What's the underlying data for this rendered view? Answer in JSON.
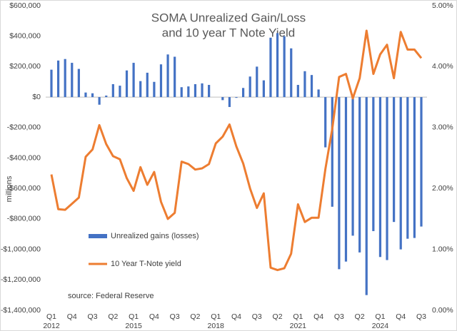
{
  "chart_data": {
    "type": "combo",
    "title": [
      "SOMA Unrealized Gain/Loss",
      "and 10 year T Note Yield"
    ],
    "ylabel": "millions",
    "annotation": "source: Federal Reserve",
    "categories": [
      "Q1",
      null,
      null,
      "Q4",
      null,
      null,
      "Q3",
      null,
      null,
      "Q2",
      null,
      null,
      "Q1",
      null,
      null,
      "Q4",
      null,
      null,
      "Q3",
      null,
      null,
      "Q2",
      null,
      null,
      "Q1",
      null,
      null,
      "Q4",
      null,
      null,
      "Q3",
      null,
      null,
      "Q2",
      null,
      null,
      "Q1",
      null,
      null,
      "Q4",
      null,
      null,
      "Q3",
      null,
      null,
      "Q2",
      null,
      null,
      "Q1",
      null,
      null,
      "Q4",
      null,
      null,
      "Q3"
    ],
    "category_groups": [
      "2012",
      null,
      null,
      null,
      null,
      null,
      null,
      null,
      null,
      null,
      null,
      null,
      "2015",
      null,
      null,
      null,
      null,
      null,
      null,
      null,
      null,
      null,
      null,
      null,
      "2018",
      null,
      null,
      null,
      null,
      null,
      null,
      null,
      null,
      null,
      null,
      null,
      "2021",
      null,
      null,
      null,
      null,
      null,
      null,
      null,
      null,
      null,
      null,
      null,
      "2024",
      null,
      null,
      null,
      null,
      null,
      null
    ],
    "series": [
      {
        "name": "Unrealized gains (losses)",
        "type": "bar",
        "color": "#4472c4",
        "values": [
          180000,
          240000,
          250000,
          225000,
          185000,
          30000,
          25000,
          -50000,
          10000,
          85000,
          75000,
          175000,
          225000,
          105000,
          160000,
          100000,
          215000,
          280000,
          265000,
          65000,
          70000,
          85000,
          90000,
          80000,
          0,
          -20000,
          -65000,
          -5000,
          60000,
          135000,
          200000,
          110000,
          390000,
          420000,
          400000,
          320000,
          80000,
          170000,
          145000,
          50000,
          -330000,
          -720000,
          -1130000,
          -1080000,
          -910000,
          -1020000,
          -1300000,
          -880000,
          -1050000,
          -1070000,
          -820000,
          -1000000,
          -930000,
          -925000,
          -850000
        ]
      },
      {
        "name": "10 Year T-Note yield",
        "type": "line",
        "axis": "y2",
        "color": "#ed7d31",
        "values": [
          2.23,
          1.66,
          1.65,
          1.75,
          1.85,
          2.52,
          2.64,
          3.04,
          2.73,
          2.53,
          2.48,
          2.17,
          1.96,
          2.35,
          2.06,
          2.27,
          1.78,
          1.5,
          1.6,
          2.44,
          2.4,
          2.31,
          2.33,
          2.4,
          2.74,
          2.85,
          3.05,
          2.69,
          2.41,
          2.0,
          1.68,
          1.92,
          0.7,
          0.66,
          0.69,
          0.93,
          1.74,
          1.45,
          1.52,
          1.52,
          2.32,
          2.98,
          3.83,
          3.88,
          3.48,
          3.81,
          4.59,
          3.88,
          4.2,
          4.36,
          3.81,
          4.57,
          4.28,
          4.28,
          4.14
        ]
      }
    ],
    "ylim": [
      -1400000,
      600000
    ],
    "yticks": [
      {
        "value": 600000,
        "label": "$600,000"
      },
      {
        "value": 400000,
        "label": "$400,000"
      },
      {
        "value": 200000,
        "label": "$200,000"
      },
      {
        "value": 0,
        "label": "$0"
      },
      {
        "value": -200000,
        "label": "-$200,000"
      },
      {
        "value": -400000,
        "label": "-$400,000"
      },
      {
        "value": -600000,
        "label": "-$600,000"
      },
      {
        "value": -800000,
        "label": "-$800,000"
      },
      {
        "value": -1000000,
        "label": "-$1,000,000"
      },
      {
        "value": -1200000,
        "label": "-$1,200,000"
      },
      {
        "value": -1400000,
        "label": "-$1,400,000"
      }
    ],
    "y2lim": [
      0,
      5
    ],
    "y2ticks": [
      {
        "value": 5,
        "label": "5.00%"
      },
      {
        "value": 4,
        "label": "4.00%"
      },
      {
        "value": 3,
        "label": "3.00%"
      },
      {
        "value": 2,
        "label": "2.00%"
      },
      {
        "value": 1,
        "label": "1.00%"
      },
      {
        "value": 0,
        "label": "0.00%"
      }
    ],
    "grid": false
  }
}
